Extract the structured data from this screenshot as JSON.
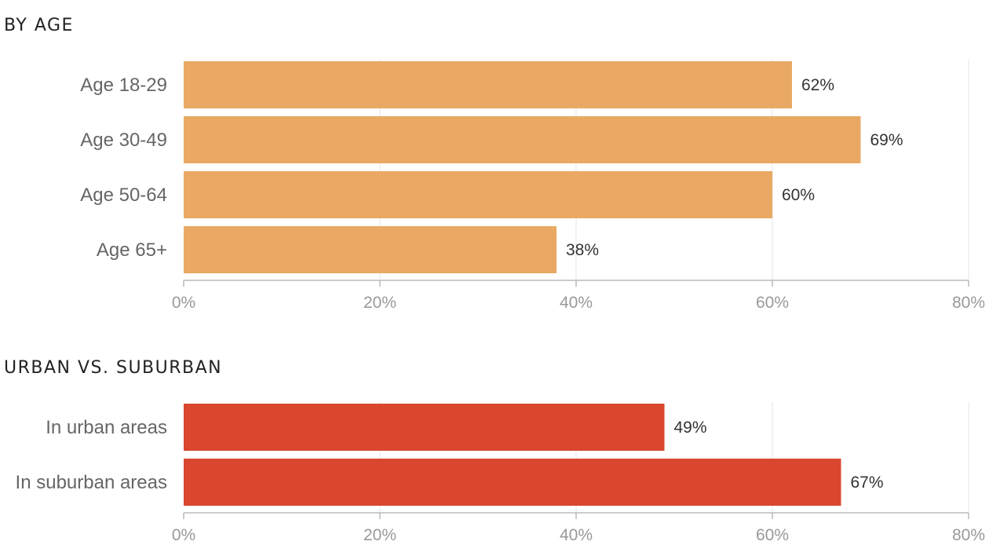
{
  "sections": [
    {
      "title": "BY AGE"
    },
    {
      "title": "URBAN VS. SUBURBAN"
    }
  ],
  "chart_data": [
    {
      "type": "bar",
      "orientation": "horizontal",
      "title": "BY AGE",
      "categories": [
        "Age 18-29",
        "Age 30-49",
        "Age 50-64",
        "Age 65+"
      ],
      "values": [
        62,
        69,
        60,
        38
      ],
      "value_labels": [
        "62%",
        "69%",
        "60%",
        "38%"
      ],
      "xlim": [
        0,
        80
      ],
      "xticks": [
        0,
        20,
        40,
        60,
        80
      ],
      "xtick_labels": [
        "0%",
        "20%",
        "40%",
        "60%",
        "80%"
      ],
      "grid": true,
      "color": "#E9A964"
    },
    {
      "type": "bar",
      "orientation": "horizontal",
      "title": "URBAN VS. SUBURBAN",
      "categories": [
        "In urban areas",
        "In suburban areas"
      ],
      "values": [
        49,
        67
      ],
      "value_labels": [
        "49%",
        "67%"
      ],
      "xlim": [
        0,
        80
      ],
      "xticks": [
        0,
        20,
        40,
        60,
        80
      ],
      "xtick_labels": [
        "0%",
        "20%",
        "40%",
        "60%",
        "80%"
      ],
      "grid": true,
      "color": "#D9472E"
    }
  ]
}
